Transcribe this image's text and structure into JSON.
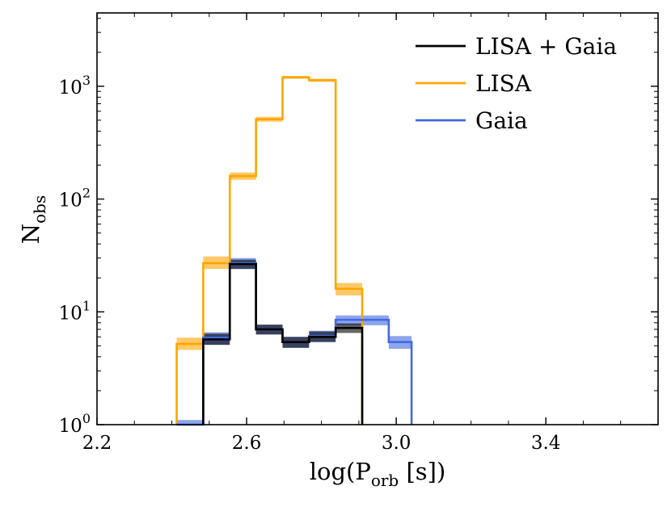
{
  "chart_data": {
    "type": "step-histogram",
    "xlabel": "log(P",
    "xlabel_sub": "orb",
    "xlabel_suffix": " [s])",
    "ylabel": "N",
    "ylabel_sub": "obs",
    "xlim": [
      2.2,
      3.7
    ],
    "ylim_log10": [
      0,
      3.65
    ],
    "yscale": "log",
    "x_ticks": [
      {
        "value": 2.2,
        "label": "2.2"
      },
      {
        "value": 2.6,
        "label": "2.6"
      },
      {
        "value": 3.0,
        "label": "3.0"
      },
      {
        "value": 3.4,
        "label": "3.4"
      }
    ],
    "y_ticks": [
      {
        "exp": 0,
        "base": "10",
        "sup": "0"
      },
      {
        "exp": 1,
        "base": "10",
        "sup": "1"
      },
      {
        "exp": 2,
        "base": "10",
        "sup": "2"
      },
      {
        "exp": 3,
        "base": "10",
        "sup": "3"
      }
    ],
    "legend": {
      "placement": "top-right"
    },
    "series": [
      {
        "name": "LISA",
        "color": "#ffa500",
        "bin_edges": [
          2.413,
          2.484,
          2.555,
          2.625,
          2.696,
          2.767,
          2.838,
          2.909
        ],
        "values": [
          5.2,
          27,
          160,
          510,
          1200,
          1130,
          16
        ],
        "band_low": [
          4.6,
          24,
          148,
          485,
          1165,
          1095,
          14
        ],
        "band_high": [
          5.9,
          31,
          172,
          535,
          1235,
          1165,
          18
        ]
      },
      {
        "name": "Gaia",
        "color": "#4169e1",
        "bin_edges": [
          2.413,
          2.484,
          2.555,
          2.625,
          2.696,
          2.767,
          2.838,
          2.909,
          2.98,
          3.041
        ],
        "values": [
          1.0,
          5.9,
          27,
          7.0,
          5.4,
          6.1,
          8.5,
          8.5,
          5.4
        ],
        "band_low": [
          0.9,
          5.1,
          24,
          6.3,
          4.8,
          5.4,
          7.6,
          7.6,
          4.7
        ],
        "band_high": [
          1.1,
          6.6,
          30,
          7.7,
          6.0,
          6.8,
          9.3,
          9.3,
          6.1
        ]
      },
      {
        "name": "LISA + Gaia",
        "color": "#000000",
        "bin_edges": [
          2.484,
          2.555,
          2.625,
          2.696,
          2.767,
          2.838,
          2.909
        ],
        "values": [
          5.7,
          26.5,
          7.0,
          5.4,
          6.0,
          7.2
        ],
        "band_low": [
          5.1,
          24,
          6.3,
          4.8,
          5.4,
          6.5
        ],
        "band_high": [
          6.4,
          29,
          7.7,
          6.0,
          6.7,
          7.9
        ]
      }
    ],
    "legend_order": [
      "LISA + Gaia",
      "LISA",
      "Gaia"
    ]
  }
}
